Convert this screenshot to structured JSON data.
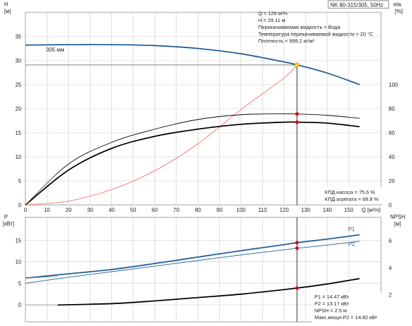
{
  "header": {
    "model": "NK 80-315/305, 50Hz"
  },
  "info_top": [
    "Q = 126 м³/ч",
    "H = 29.11 м",
    "Перекачиваемая жидкость = Вода",
    "Температура перекачиваемой жидкости = 20 °C",
    "Плотность = 998.2 кг/м³"
  ],
  "eff_info": [
    "КПД насоса = 75.6 %",
    "КПД агрегата = 68.8 %"
  ],
  "power_info": [
    "P1 = 14.47 кВт",
    "P2 = 13.17 кВт",
    "NPSH = 2.5 м",
    "Макс.мощн.P2 = 14.82 кВт"
  ],
  "colors": {
    "head_curve": "#1f5c99",
    "power_curve": "#1f5c99",
    "efficiency_curve": "#000000",
    "system_curve": "#ff6b6b",
    "marker": "#e00000",
    "duty_point": "#ffd21a"
  },
  "chart_data": [
    {
      "type": "line",
      "title": "",
      "xlabel": "Q [м³/ч]",
      "ylabel": "H [м]",
      "y2label": "eta [%]",
      "xlim": [
        0,
        165
      ],
      "ylim": [
        0,
        40
      ],
      "y2lim": [
        0,
        160
      ],
      "x_ticks": [
        0,
        10,
        20,
        30,
        40,
        50,
        60,
        70,
        80,
        90,
        100,
        110,
        120,
        130,
        140,
        150
      ],
      "y_ticks": [
        0,
        5,
        10,
        15,
        20,
        25,
        30,
        35
      ],
      "y2_ticks": [
        0,
        20,
        40,
        60,
        80,
        100
      ],
      "grid": true,
      "series": [
        {
          "name": "305 мм",
          "axis": "H",
          "x": [
            0,
            20,
            40,
            60,
            80,
            100,
            120,
            126,
            140,
            155
          ],
          "y": [
            33.2,
            33.3,
            33.3,
            33.1,
            32.5,
            31.4,
            29.7,
            29.11,
            27.4,
            25.0
          ]
        },
        {
          "axis": "eta",
          "x": [
            0,
            20,
            40,
            60,
            80,
            100,
            120,
            126,
            140,
            155
          ],
          "y": [
            0,
            34,
            52,
            63,
            71,
            75,
            75.7,
            75.6,
            74.5,
            72
          ]
        },
        {
          "axis": "eta",
          "x": [
            0,
            20,
            40,
            60,
            80,
            100,
            120,
            126,
            140,
            155
          ],
          "y": [
            0,
            29,
            47,
            57,
            63,
            67,
            68.8,
            68.8,
            68,
            65
          ]
        },
        {
          "axis": "H",
          "x": [
            0,
            20,
            40,
            60,
            80,
            100,
            120,
            126
          ],
          "y": [
            0,
            0.8,
            3.2,
            7.1,
            12.7,
            19.8,
            26.4,
            29.11
          ]
        }
      ],
      "duty_point": {
        "x": 126,
        "y": 29.11
      }
    },
    {
      "type": "line",
      "title": "",
      "xlabel": "",
      "ylabel": "P [кВт]",
      "y2label": "NPSH [м]",
      "xlim": [
        0,
        165
      ],
      "ylim": [
        0,
        20
      ],
      "y2lim": [
        0,
        8
      ],
      "y_ticks": [
        0,
        5,
        10,
        15
      ],
      "y2_ticks": [
        2,
        4,
        6
      ],
      "grid": true,
      "series": [
        {
          "name": "P1",
          "axis": "P",
          "x": [
            0,
            20,
            40,
            60,
            80,
            100,
            120,
            126,
            140,
            155
          ],
          "y": [
            6.2,
            7.2,
            8.2,
            9.6,
            11.1,
            12.6,
            14.0,
            14.47,
            15.3,
            16.3
          ]
        },
        {
          "name": "P2",
          "axis": "P",
          "x": [
            0,
            20,
            40,
            60,
            80,
            100,
            120,
            126,
            140,
            155
          ],
          "y": [
            5.0,
            6.4,
            7.7,
            9.0,
            10.3,
            11.6,
            12.8,
            13.17,
            13.9,
            14.8
          ]
        },
        {
          "axis": "NPSH",
          "x": [
            15,
            40,
            60,
            80,
            100,
            126,
            140,
            155
          ],
          "y": [
            1.25,
            1.35,
            1.55,
            1.8,
            2.05,
            2.5,
            2.8,
            3.2
          ]
        }
      ]
    }
  ]
}
